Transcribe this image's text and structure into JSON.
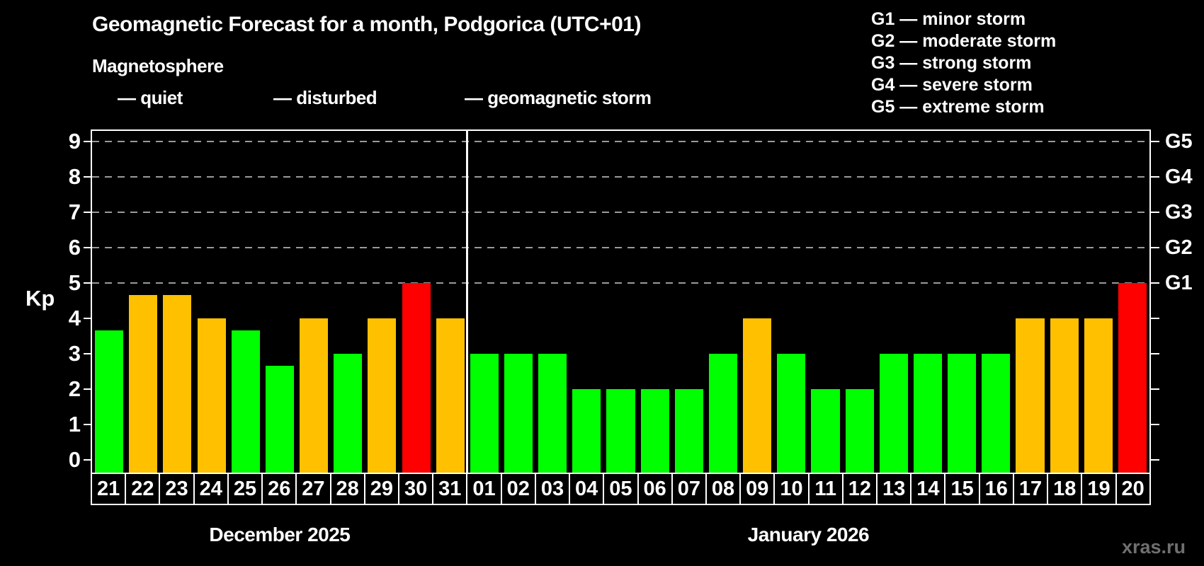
{
  "header": {
    "title": "Geomagnetic Forecast for a month, Podgorica (UTC+01)",
    "subtitle": "Magnetosphere"
  },
  "legend": {
    "items": [
      {
        "key": "quiet",
        "label": "— quiet"
      },
      {
        "key": "disturbed",
        "label": "— disturbed"
      },
      {
        "key": "storm",
        "label": "— geomagnetic storm"
      }
    ]
  },
  "g_scale_legend": {
    "items": [
      "G1 — minor storm",
      "G2 — moderate storm",
      "G3 — strong storm",
      "G4 — severe storm",
      "G5 — extreme storm"
    ]
  },
  "colors": {
    "quiet": "#00ff00",
    "disturbed": "#ffc000",
    "storm": "#ff0000",
    "axis": "#ffffff",
    "grid": "#9a9a9a",
    "background": "#000000",
    "watermark": "#6f6f6f"
  },
  "watermark": "xras.ru",
  "chart_data": {
    "type": "bar",
    "title": "Geomagnetic Forecast for a month, Podgorica (UTC+01)",
    "ylabel": "Kp",
    "ylim": [
      0,
      9.3
    ],
    "yticks": [
      0,
      1,
      2,
      3,
      4,
      5,
      6,
      7,
      8,
      9
    ],
    "grid_kp_levels": [
      5,
      6,
      7,
      8,
      9
    ],
    "right_axis": {
      "labels": [
        {
          "kp": 5,
          "text": "G1"
        },
        {
          "kp": 6,
          "text": "G2"
        },
        {
          "kp": 7,
          "text": "G3"
        },
        {
          "kp": 8,
          "text": "G4"
        },
        {
          "kp": 9,
          "text": "G5"
        }
      ]
    },
    "legend_position": "top-left",
    "grid": "dashed horizontal at storm levels only",
    "months": [
      {
        "label": "December 2025",
        "days": [
          {
            "day": "21",
            "kp": 3.67,
            "status": "quiet"
          },
          {
            "day": "22",
            "kp": 4.67,
            "status": "disturbed"
          },
          {
            "day": "23",
            "kp": 4.67,
            "status": "disturbed"
          },
          {
            "day": "24",
            "kp": 4.0,
            "status": "disturbed"
          },
          {
            "day": "25",
            "kp": 3.67,
            "status": "quiet"
          },
          {
            "day": "26",
            "kp": 2.67,
            "status": "quiet"
          },
          {
            "day": "27",
            "kp": 4.0,
            "status": "disturbed"
          },
          {
            "day": "28",
            "kp": 3.0,
            "status": "quiet"
          },
          {
            "day": "29",
            "kp": 4.0,
            "status": "disturbed"
          },
          {
            "day": "30",
            "kp": 5.0,
            "status": "storm"
          },
          {
            "day": "31",
            "kp": 4.0,
            "status": "disturbed"
          }
        ]
      },
      {
        "label": "January 2026",
        "days": [
          {
            "day": "01",
            "kp": 3.0,
            "status": "quiet"
          },
          {
            "day": "02",
            "kp": 3.0,
            "status": "quiet"
          },
          {
            "day": "03",
            "kp": 3.0,
            "status": "quiet"
          },
          {
            "day": "04",
            "kp": 2.0,
            "status": "quiet"
          },
          {
            "day": "05",
            "kp": 2.0,
            "status": "quiet"
          },
          {
            "day": "06",
            "kp": 2.0,
            "status": "quiet"
          },
          {
            "day": "07",
            "kp": 2.0,
            "status": "quiet"
          },
          {
            "day": "08",
            "kp": 3.0,
            "status": "quiet"
          },
          {
            "day": "09",
            "kp": 4.0,
            "status": "disturbed"
          },
          {
            "day": "10",
            "kp": 3.0,
            "status": "quiet"
          },
          {
            "day": "11",
            "kp": 2.0,
            "status": "quiet"
          },
          {
            "day": "12",
            "kp": 2.0,
            "status": "quiet"
          },
          {
            "day": "13",
            "kp": 3.0,
            "status": "quiet"
          },
          {
            "day": "14",
            "kp": 3.0,
            "status": "quiet"
          },
          {
            "day": "15",
            "kp": 3.0,
            "status": "quiet"
          },
          {
            "day": "16",
            "kp": 3.0,
            "status": "quiet"
          },
          {
            "day": "17",
            "kp": 4.0,
            "status": "disturbed"
          },
          {
            "day": "18",
            "kp": 4.0,
            "status": "disturbed"
          },
          {
            "day": "19",
            "kp": 4.0,
            "status": "disturbed"
          },
          {
            "day": "20",
            "kp": 5.0,
            "status": "storm"
          }
        ]
      }
    ]
  }
}
